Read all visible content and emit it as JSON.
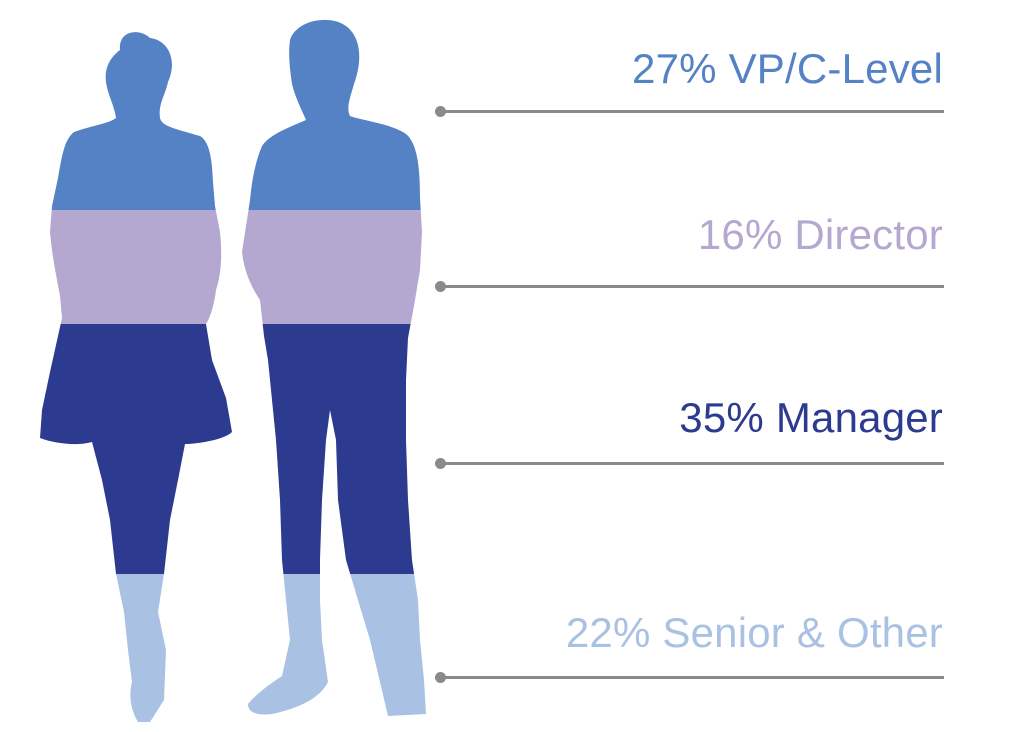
{
  "chart_data": {
    "type": "bar",
    "categories": [
      "VP/C-Level",
      "Director",
      "Manager",
      "Senior & Other"
    ],
    "values": [
      27,
      16,
      35,
      22
    ],
    "unit": "%",
    "labels": [
      {
        "pct": "27%",
        "name": "VP/C-Level"
      },
      {
        "pct": "16%",
        "name": "Director"
      },
      {
        "pct": "35%",
        "name": "Manager"
      },
      {
        "pct": "22%",
        "name": "Senior & Other"
      }
    ],
    "colors": [
      "#5482c4",
      "#b4a8d1",
      "#2c3a8f",
      "#a9c1e2"
    ],
    "leader_color": "#8a8a8a",
    "figure_icons": [
      "woman-silhouette-icon",
      "man-silhouette-icon"
    ]
  }
}
